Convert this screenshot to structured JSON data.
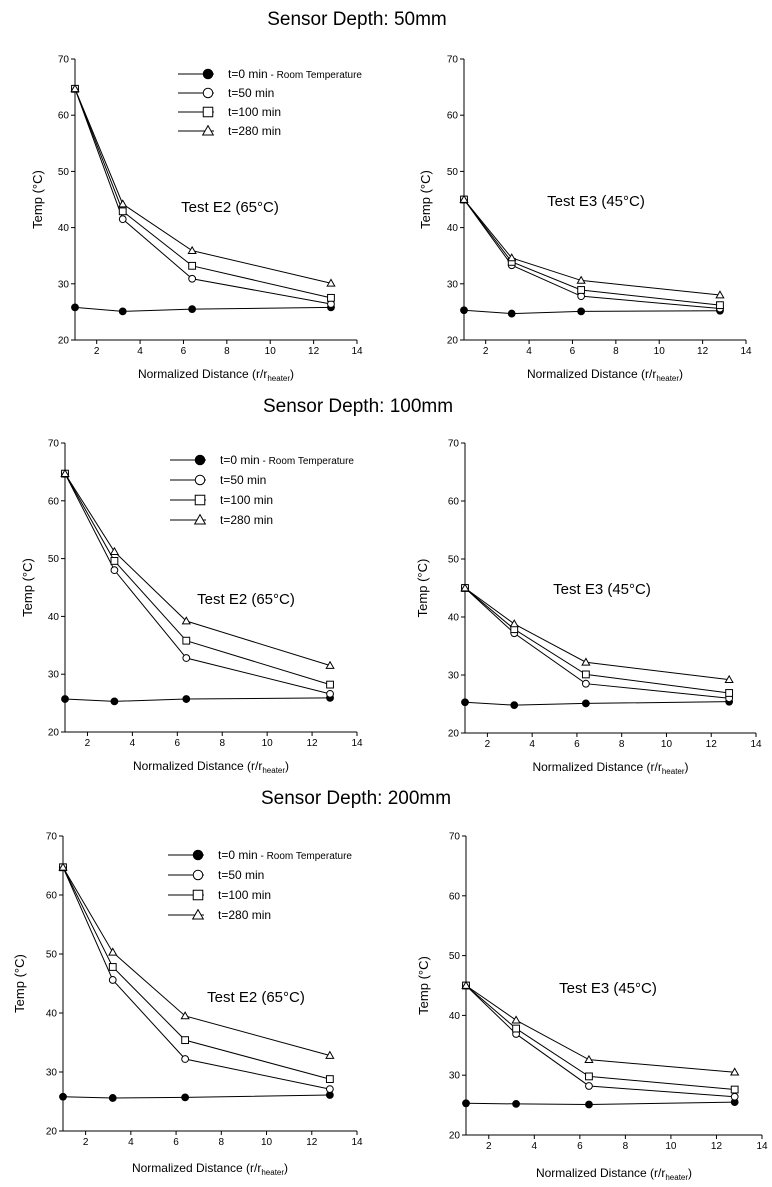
{
  "page": {
    "section_titles": [
      "Sensor Depth: 50mm",
      "Sensor Depth: 100mm",
      "Sensor Depth: 200mm"
    ],
    "legend": {
      "entries": [
        {
          "label": "t=0 min",
          "suffix": " - Room Temperature",
          "marker": "filled-circle"
        },
        {
          "label": "t=50 min",
          "suffix": "",
          "marker": "open-circle"
        },
        {
          "label": "t=100 min",
          "suffix": "",
          "marker": "open-square"
        },
        {
          "label": "t=280 min",
          "suffix": "",
          "marker": "open-triangle"
        }
      ]
    }
  },
  "chart_data": [
    {
      "type": "line",
      "section": "Sensor Depth: 50mm",
      "test_label": "Test E2 (65°C)",
      "xlabel": "Normalized Distance (r/r",
      "xlabel_sub": "heater",
      "xlabel_end": ")",
      "ylabel": "Temp (°C)",
      "xlim": [
        1,
        14
      ],
      "ylim": [
        20,
        70
      ],
      "xticks": [
        2,
        4,
        6,
        8,
        10,
        12,
        14
      ],
      "yticks": [
        20,
        30,
        40,
        50,
        60,
        70
      ],
      "x": [
        1,
        3.2,
        6.4,
        12.8
      ],
      "series": [
        {
          "name": "t=0 min - Room Temperature",
          "marker": "filled-circle",
          "values": [
            25.8,
            25.1,
            25.5,
            25.8
          ]
        },
        {
          "name": "t=50 min",
          "marker": "open-circle",
          "values": [
            64.7,
            41.5,
            30.9,
            26.4
          ]
        },
        {
          "name": "t=100 min",
          "marker": "open-square",
          "values": [
            64.7,
            42.9,
            33.2,
            27.5
          ]
        },
        {
          "name": "t=280 min",
          "marker": "open-triangle",
          "values": [
            64.7,
            44.2,
            35.9,
            30.1
          ]
        }
      ]
    },
    {
      "type": "line",
      "section": "Sensor Depth: 50mm",
      "test_label": "Test E3 (45°C)",
      "xlabel": "Normalized Distance (r/r",
      "xlabel_sub": "heater",
      "xlabel_end": ")",
      "ylabel": "Temp (°C)",
      "xlim": [
        1,
        14
      ],
      "ylim": [
        20,
        70
      ],
      "xticks": [
        2,
        4,
        6,
        8,
        10,
        12,
        14
      ],
      "yticks": [
        20,
        30,
        40,
        50,
        60,
        70
      ],
      "x": [
        1,
        3.2,
        6.4,
        12.8
      ],
      "series": [
        {
          "name": "t=0 min - Room Temperature",
          "marker": "filled-circle",
          "values": [
            25.3,
            24.7,
            25.1,
            25.2
          ]
        },
        {
          "name": "t=50 min",
          "marker": "open-circle",
          "values": [
            45.0,
            33.3,
            27.8,
            25.6
          ]
        },
        {
          "name": "t=100 min",
          "marker": "open-square",
          "values": [
            45.0,
            33.9,
            28.9,
            26.2
          ]
        },
        {
          "name": "t=280 min",
          "marker": "open-triangle",
          "values": [
            45.0,
            34.6,
            30.6,
            28.0
          ]
        }
      ]
    },
    {
      "type": "line",
      "section": "Sensor Depth: 100mm",
      "test_label": "Test E2 (65°C)",
      "xlabel": "Normalized Distance (r/r",
      "xlabel_sub": "heater",
      "xlabel_end": ")",
      "ylabel": "Temp (°C)",
      "xlim": [
        1,
        14
      ],
      "ylim": [
        20,
        70
      ],
      "xticks": [
        2,
        4,
        6,
        8,
        10,
        12,
        14
      ],
      "yticks": [
        20,
        30,
        40,
        50,
        60,
        70
      ],
      "x": [
        1,
        3.2,
        6.4,
        12.8
      ],
      "series": [
        {
          "name": "t=0 min - Room Temperature",
          "marker": "filled-circle",
          "values": [
            25.7,
            25.3,
            25.7,
            25.9
          ]
        },
        {
          "name": "t=50 min",
          "marker": "open-circle",
          "values": [
            64.7,
            48.0,
            32.8,
            26.6
          ]
        },
        {
          "name": "t=100 min",
          "marker": "open-square",
          "values": [
            64.7,
            49.6,
            35.8,
            28.2
          ]
        },
        {
          "name": "t=280 min",
          "marker": "open-triangle",
          "values": [
            64.7,
            51.2,
            39.2,
            31.5
          ]
        }
      ]
    },
    {
      "type": "line",
      "section": "Sensor Depth: 100mm",
      "test_label": "Test E3 (45°C)",
      "xlabel": "Normalized Distance (r/r",
      "xlabel_sub": "heater",
      "xlabel_end": ")",
      "ylabel": "Temp (°C)",
      "xlim": [
        1,
        14
      ],
      "ylim": [
        20,
        70
      ],
      "xticks": [
        2,
        4,
        6,
        8,
        10,
        12,
        14
      ],
      "yticks": [
        20,
        30,
        40,
        50,
        60,
        70
      ],
      "x": [
        1,
        3.2,
        6.4,
        12.8
      ],
      "series": [
        {
          "name": "t=0 min - Room Temperature",
          "marker": "filled-circle",
          "values": [
            25.3,
            24.8,
            25.1,
            25.4
          ]
        },
        {
          "name": "t=50 min",
          "marker": "open-circle",
          "values": [
            45.0,
            37.2,
            28.5,
            26.0
          ]
        },
        {
          "name": "t=100 min",
          "marker": "open-square",
          "values": [
            45.0,
            37.9,
            30.1,
            26.9
          ]
        },
        {
          "name": "t=280 min",
          "marker": "open-triangle",
          "values": [
            45.0,
            38.8,
            32.2,
            29.2
          ]
        }
      ]
    },
    {
      "type": "line",
      "section": "Sensor Depth: 200mm",
      "test_label": "Test E2 (65°C)",
      "xlabel": "Normalized Distance (r/r",
      "xlabel_sub": "heater",
      "xlabel_end": ")",
      "ylabel": "Temp (°C)",
      "xlim": [
        1,
        14
      ],
      "ylim": [
        20,
        70
      ],
      "xticks": [
        2,
        4,
        6,
        8,
        10,
        12,
        14
      ],
      "yticks": [
        20,
        30,
        40,
        50,
        60,
        70
      ],
      "x": [
        1,
        3.2,
        6.4,
        12.8
      ],
      "series": [
        {
          "name": "t=0 min - Room Temperature",
          "marker": "filled-circle",
          "values": [
            25.8,
            25.6,
            25.7,
            26.1
          ]
        },
        {
          "name": "t=50 min",
          "marker": "open-circle",
          "values": [
            64.7,
            45.6,
            32.2,
            27.1
          ]
        },
        {
          "name": "t=100 min",
          "marker": "open-square",
          "values": [
            64.7,
            47.8,
            35.4,
            28.8
          ]
        },
        {
          "name": "t=280 min",
          "marker": "open-triangle",
          "values": [
            64.7,
            50.3,
            39.5,
            32.8
          ]
        }
      ]
    },
    {
      "type": "line",
      "section": "Sensor Depth: 200mm",
      "test_label": "Test E3 (45°C)",
      "xlabel": "Normalized Distance (r/r",
      "xlabel_sub": "heater",
      "xlabel_end": ")",
      "ylabel": "Temp (°C)",
      "xlim": [
        1,
        14
      ],
      "ylim": [
        20,
        70
      ],
      "xticks": [
        2,
        4,
        6,
        8,
        10,
        12,
        14
      ],
      "yticks": [
        20,
        30,
        40,
        50,
        60,
        70
      ],
      "x": [
        1,
        3.2,
        6.4,
        12.8
      ],
      "series": [
        {
          "name": "t=0 min - Room Temperature",
          "marker": "filled-circle",
          "values": [
            25.3,
            25.2,
            25.1,
            25.5
          ]
        },
        {
          "name": "t=50 min",
          "marker": "open-circle",
          "values": [
            45.0,
            36.9,
            28.2,
            26.4
          ]
        },
        {
          "name": "t=100 min",
          "marker": "open-square",
          "values": [
            45.0,
            37.8,
            29.8,
            27.6
          ]
        },
        {
          "name": "t=280 min",
          "marker": "open-triangle",
          "values": [
            45.0,
            39.2,
            32.6,
            30.5
          ]
        }
      ]
    }
  ]
}
